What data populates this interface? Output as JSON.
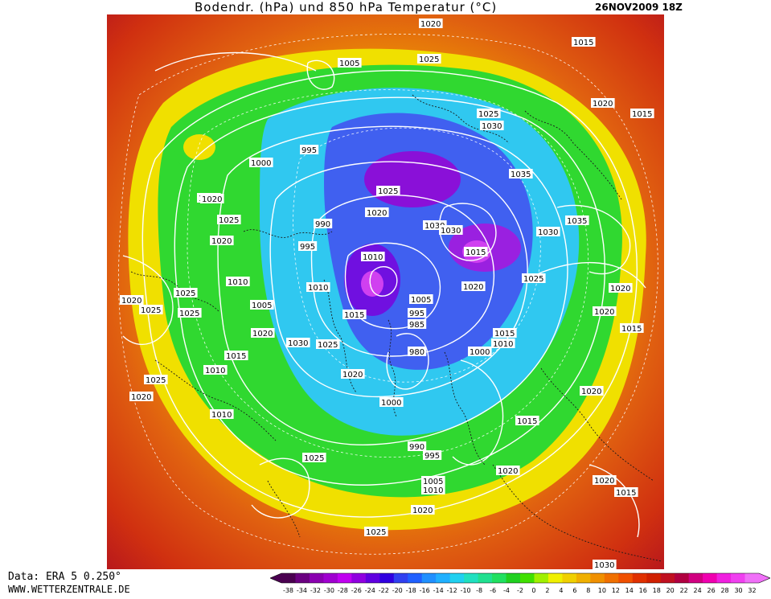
{
  "title": {
    "main": "Bodendr. (hPa) und 850 hPa Temperatur (°C)",
    "date": "26NOV2009 18Z"
  },
  "footer": {
    "data_source": "Data: ERA 5 0.250°",
    "url": "WWW.WETTERZENTRALE.DE"
  },
  "legend": {
    "ticks": [
      "-38",
      "-34",
      "-32",
      "-30",
      "-28",
      "-26",
      "-24",
      "-22",
      "-20",
      "-18",
      "-16",
      "-14",
      "-12",
      "-10",
      "-8",
      "-6",
      "-4",
      "-2",
      "0",
      "2",
      "4",
      "6",
      "8",
      "10",
      "12",
      "14",
      "16",
      "18",
      "20",
      "22",
      "24",
      "26",
      "28",
      "30",
      "32"
    ],
    "colors": [
      "#4a0050",
      "#6a0080",
      "#8a00b0",
      "#a000d0",
      "#c000f0",
      "#9000e0",
      "#6000e0",
      "#3000e0",
      "#3040f0",
      "#2060ff",
      "#2090ff",
      "#20b0ff",
      "#20d0f0",
      "#20e0c0",
      "#20e090",
      "#20e060",
      "#20d020",
      "#40e000",
      "#a0f000",
      "#f0f000",
      "#f0d000",
      "#f0b000",
      "#f09000",
      "#f07000",
      "#f05000",
      "#e03000",
      "#d02000",
      "#c01020",
      "#b00040",
      "#d00080",
      "#f000b0",
      "#f020e0",
      "#f040f0",
      "#f070f8"
    ]
  },
  "map": {
    "pressure_labels": [
      "1020",
      "1015",
      "1005",
      "1025",
      "1020",
      "1015",
      "1025",
      "1030",
      "995",
      "1000",
      "1030",
      "1035",
      "1025",
      "1020",
      "1030",
      "1025",
      "1030",
      "1035",
      "1030",
      "990",
      "995",
      "1020",
      "1010",
      "1015",
      "1020",
      "1025",
      "1025",
      "1020",
      "1010",
      "1010",
      "1005",
      "1005",
      "1015",
      "995",
      "985",
      "1020",
      "1015",
      "1010",
      "1025",
      "1030",
      "1025",
      "1020",
      "1025",
      "1000",
      "1015",
      "1010",
      "980",
      "1020",
      "1020",
      "1000",
      "1020",
      "1015",
      "1010",
      "990",
      "995",
      "1025",
      "1020",
      "1005",
      "1010",
      "1020",
      "1025",
      "1020",
      "1015",
      "1020",
      "1010",
      "1015",
      "1025",
      "1020",
      "1030"
    ]
  }
}
